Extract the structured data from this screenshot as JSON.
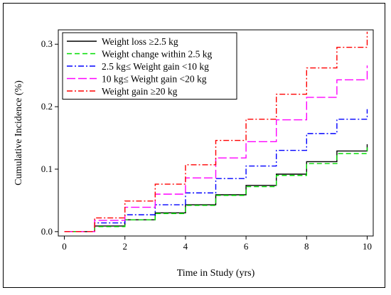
{
  "chart_data": {
    "type": "line",
    "step": true,
    "xlabel": "Time in Study (yrs)",
    "ylabel": "Cumulative Incidence (%)",
    "xlim": [
      -0.2,
      10.2
    ],
    "ylim": [
      -0.007,
      0.323
    ],
    "x_ticks": [
      "0",
      "2",
      "4",
      "6",
      "8",
      "10"
    ],
    "y_ticks": [
      "0.0",
      "0.1",
      "0.2",
      "0.3"
    ],
    "grid": false,
    "legend_position": "top-left",
    "x": [
      0,
      1,
      2,
      3,
      4,
      5,
      6,
      7,
      8,
      9,
      10
    ],
    "series": [
      {
        "name": "Weight loss ≥2.5 kg",
        "color": "#000000",
        "dash": "solid",
        "values": [
          0.0,
          0.009,
          0.019,
          0.03,
          0.043,
          0.059,
          0.074,
          0.092,
          0.112,
          0.129,
          0.14
        ]
      },
      {
        "name": "Weight change within 2.5 kg",
        "color": "#00dd00",
        "dash": "dashed",
        "values": [
          0.0,
          0.008,
          0.019,
          0.029,
          0.042,
          0.058,
          0.072,
          0.09,
          0.109,
          0.125,
          0.135
        ]
      },
      {
        "name": "2.5 kg≤ Weight gain <10 kg",
        "color": "#0000ff",
        "dash": "dash-dot",
        "values": [
          0.0,
          0.014,
          0.027,
          0.043,
          0.062,
          0.085,
          0.105,
          0.13,
          0.157,
          0.18,
          0.196
        ]
      },
      {
        "name": "10 kg≤ Weight gain <20 kg",
        "color": "#ff00ff",
        "dash": "long-dash",
        "values": [
          0.0,
          0.018,
          0.039,
          0.06,
          0.086,
          0.118,
          0.144,
          0.179,
          0.215,
          0.243,
          0.266
        ]
      },
      {
        "name": "Weight gain ≥20 kg",
        "color": "#ff0000",
        "dash": "dash-dot",
        "values": [
          0.0,
          0.022,
          0.049,
          0.076,
          0.107,
          0.146,
          0.18,
          0.22,
          0.262,
          0.295,
          0.32
        ]
      }
    ]
  }
}
